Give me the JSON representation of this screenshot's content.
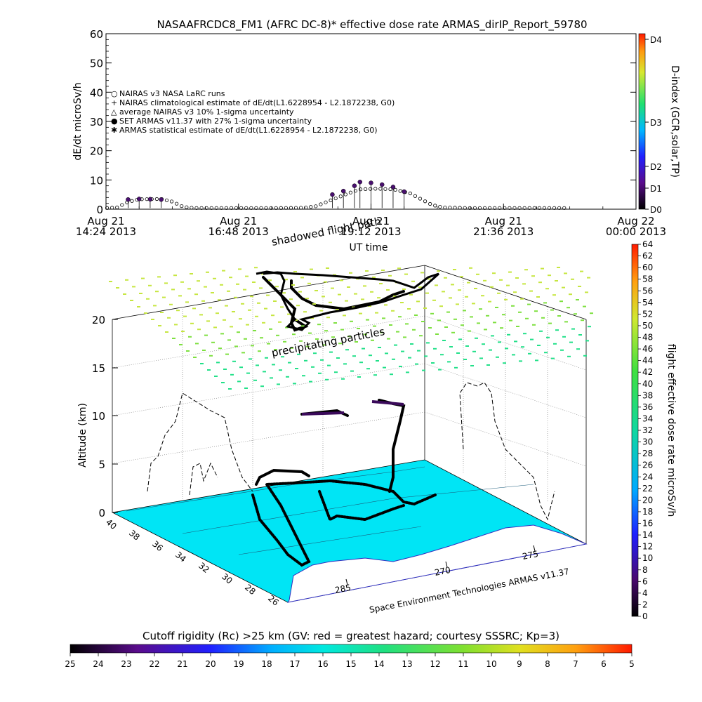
{
  "chart_data": [
    {
      "type": "line",
      "title": "NASAAFRCDC8_FM1 (AFRC DC-8)* effective dose rate ARMAS_dirIP_Report_59780",
      "ylabel": "dE/dt microSv/h",
      "xlabel": "UT time",
      "ylim": [
        0,
        60
      ],
      "yticks": [
        "0",
        "10",
        "20",
        "30",
        "40",
        "50",
        "60"
      ],
      "xticks": [
        {
          "day": "Aug 21",
          "time": "14:24 2013"
        },
        {
          "day": "Aug 21",
          "time": "16:48 2013"
        },
        {
          "day": "Aug 21",
          "time": "19:12 2013"
        },
        {
          "day": "Aug 21",
          "time": "21:36 2013"
        },
        {
          "day": "Aug 22",
          "time": "00:00 2013"
        }
      ],
      "x_hours": [
        14.4,
        24.0
      ],
      "right_axis": {
        "label": "D-index (GCR,solar,TP)",
        "ticks": [
          "D0",
          "D1",
          "D2",
          "D3",
          "D4"
        ]
      },
      "legend": [
        "NAIRAS v3 NASA LaRC runs",
        "NAIRAS climatological estimate of dE/dt(L1.6228954 - L2.1872238, G0)",
        "average NAIRAS v3 10% 1-sigma uncertainty",
        "SET ARMAS v11.37 with 27% 1-sigma uncertainty",
        "ARMAS statistical estimate of dE/dt(L1.6228954 - L2.1872238, G0)"
      ],
      "series": [
        {
          "name": "NAIRAS v3 NASA LaRC runs",
          "points": [
            [
              14.4,
              0.4
            ],
            [
              14.6,
              0.6
            ],
            [
              14.8,
              2.5
            ],
            [
              15.0,
              3.4
            ],
            [
              15.4,
              3.5
            ],
            [
              15.6,
              2.6
            ],
            [
              15.8,
              0.8
            ],
            [
              16.0,
              0.4
            ],
            [
              16.5,
              0.4
            ],
            [
              17.0,
              0.4
            ],
            [
              17.5,
              0.4
            ],
            [
              18.0,
              0.5
            ],
            [
              18.2,
              1.0
            ],
            [
              18.4,
              2.5
            ],
            [
              18.6,
              4.0
            ],
            [
              18.8,
              5.5
            ],
            [
              19.0,
              6.8
            ],
            [
              19.3,
              7.0
            ],
            [
              19.6,
              6.8
            ],
            [
              19.9,
              5.5
            ],
            [
              20.1,
              3.5
            ],
            [
              20.3,
              1.5
            ],
            [
              20.5,
              0.6
            ],
            [
              21.0,
              0.4
            ],
            [
              21.5,
              0.4
            ],
            [
              22.0,
              0.4
            ],
            [
              22.5,
              0.4
            ]
          ]
        },
        {
          "name": "SET ARMAS v11.37 with 27% 1-sigma uncertainty",
          "points": [
            [
              14.8,
              3.3
            ],
            [
              15.0,
              3.5
            ],
            [
              15.2,
              3.4
            ],
            [
              15.4,
              3.3
            ],
            [
              18.5,
              5.0
            ],
            [
              18.7,
              6.2
            ],
            [
              18.9,
              8.0
            ],
            [
              19.0,
              9.3
            ],
            [
              19.2,
              9.0
            ],
            [
              19.4,
              8.4
            ],
            [
              19.6,
              7.6
            ],
            [
              19.8,
              6.0
            ]
          ]
        }
      ]
    },
    {
      "type": "scatter",
      "ylabel": "Altitude (km)",
      "zticks": [
        "0",
        "5",
        "10",
        "15",
        "20"
      ],
      "lat_ticks": [
        "40",
        "38",
        "36",
        "34",
        "32",
        "30",
        "28",
        "26"
      ],
      "lon_ticks": [
        "285",
        "270",
        "275"
      ],
      "right_colorbar": {
        "label": "flight effective dose rate microSv/h",
        "ticks": [
          "0",
          "2",
          "4",
          "6",
          "8",
          "10",
          "12",
          "14",
          "16",
          "18",
          "20",
          "22",
          "24",
          "26",
          "28",
          "30",
          "32",
          "34",
          "36",
          "38",
          "40",
          "42",
          "44",
          "46",
          "48",
          "50",
          "52",
          "54",
          "56",
          "58",
          "60",
          "62",
          "64"
        ]
      },
      "annotations": [
        "shadowed flight path",
        "precipitating particles",
        "Space Environment Technologies ARMAS v11.37"
      ],
      "bottom_colorbar": {
        "title": "Cutoff rigidity (Rc) >25 km (GV: red = greatest hazard; courtesy SSSRC; Kp=3)",
        "ticks": [
          "25",
          "24",
          "23",
          "22",
          "21",
          "20",
          "19",
          "18",
          "17",
          "16",
          "15",
          "14",
          "13",
          "12",
          "11",
          "10",
          "9",
          "8",
          "7",
          "6",
          "5"
        ]
      }
    }
  ],
  "colors": {
    "ocean": "#00e5f5",
    "land": "#ffffff",
    "particles_high": "#c6e640",
    "particles_low": "#22e089",
    "flight_track": "#000000",
    "flight_track_high": "#3a0a5a"
  }
}
